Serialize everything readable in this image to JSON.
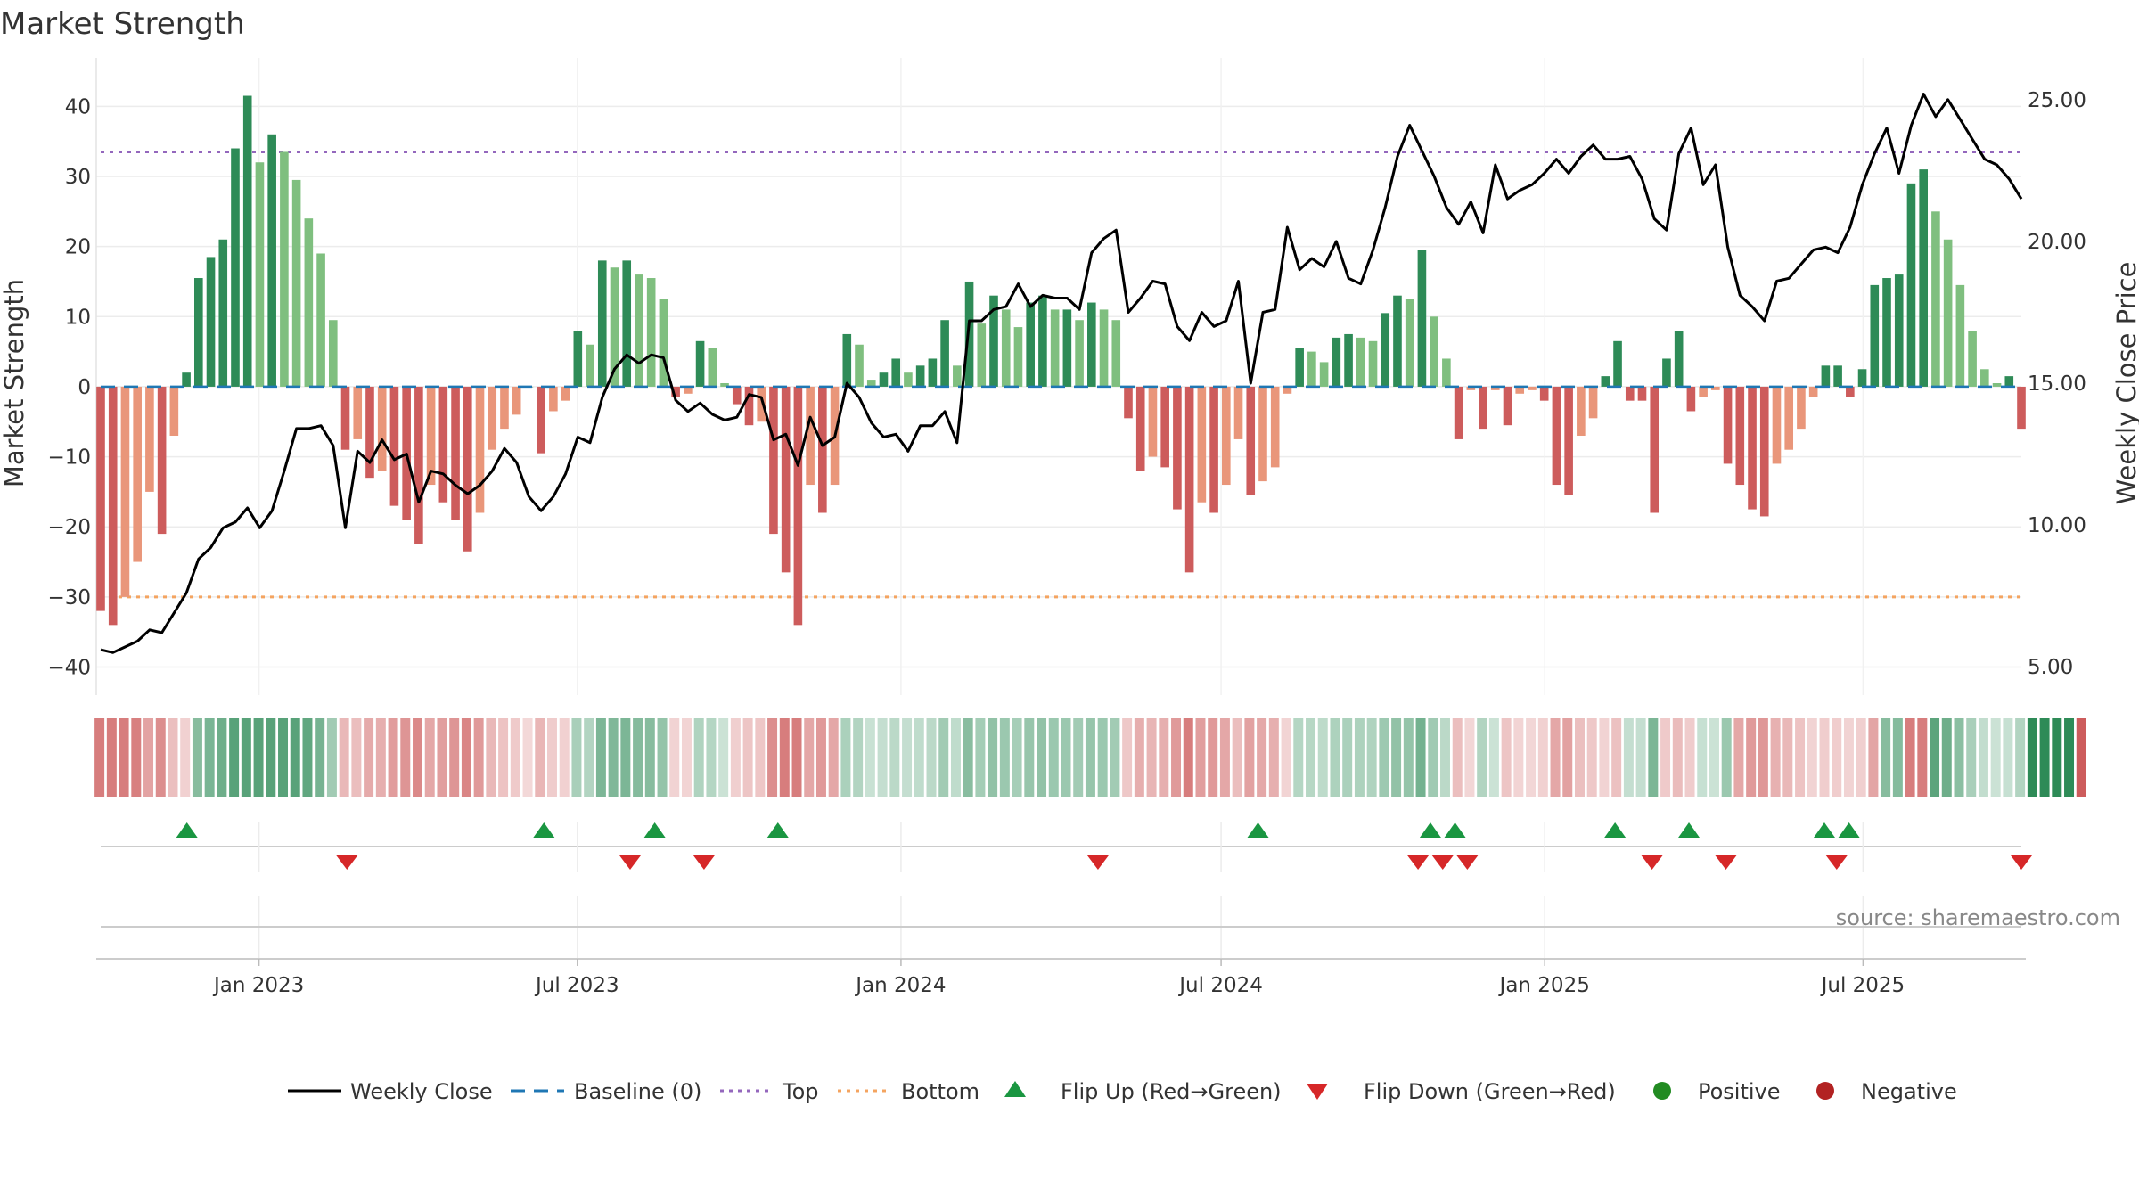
{
  "chart_data": {
    "type": "bar",
    "title": "Market Strength",
    "ylabel_left": "Market Strength",
    "ylabel_right": "Weekly Close Price",
    "ylim_left": [
      -44,
      45
    ],
    "ylim_right": [
      4,
      26
    ],
    "yticks_left": [
      40,
      30,
      20,
      10,
      0,
      -10,
      -20,
      -30,
      -40
    ],
    "ytick_labels_left": [
      "40",
      "30",
      "20",
      "10",
      "0",
      "−10",
      "−20",
      "−30",
      "−40"
    ],
    "yticks_right": [
      25,
      20,
      15,
      10,
      5
    ],
    "ytick_labels_right": [
      "25.00",
      "20.00",
      "15.00",
      "10.00",
      "5.00"
    ],
    "x_start": "2022-10-03",
    "x_end": "2025-09-29",
    "xticks": [
      {
        "date": "2023-01-01",
        "label": "Jan 2023"
      },
      {
        "date": "2023-07-01",
        "label": "Jul 2023"
      },
      {
        "date": "2024-01-01",
        "label": "Jan 2024"
      },
      {
        "date": "2024-07-01",
        "label": "Jul 2024"
      },
      {
        "date": "2025-01-01",
        "label": "Jan 2025"
      },
      {
        "date": "2025-07-01",
        "label": "Jul 2025"
      }
    ],
    "top_line": 33.5,
    "bottom_line": -30,
    "baseline": 0,
    "strength": [
      -32,
      -34,
      -30,
      -25,
      -15,
      -21,
      -7,
      2,
      15.5,
      18.5,
      21,
      34,
      41.5,
      32,
      36,
      33.5,
      29.5,
      24,
      19,
      9.5,
      -9,
      -7.5,
      -13,
      -12,
      -17,
      -19,
      -22.5,
      -14,
      -16.5,
      -19,
      -23.5,
      -18,
      -9,
      -6,
      -4,
      0,
      -9.5,
      -3.5,
      -2,
      8,
      6,
      18,
      17,
      18,
      16,
      15.5,
      12.5,
      -1.5,
      -1,
      6.5,
      5.5,
      0.5,
      -2.5,
      -5.5,
      -5,
      -21,
      -26.5,
      -34,
      -14,
      -18,
      -14,
      7.5,
      6,
      1,
      2,
      4,
      2,
      3,
      4,
      9.5,
      3,
      15,
      9,
      13,
      11,
      8.5,
      12,
      13,
      11,
      11,
      9.5,
      12,
      11,
      9.5,
      -4.5,
      -12,
      -10,
      -11.5,
      -17.5,
      -26.5,
      -16.5,
      -18,
      -14,
      -7.5,
      -15.5,
      -13.5,
      -11.5,
      -1,
      5.5,
      5,
      3.5,
      7,
      7.5,
      7,
      6.5,
      10.5,
      13,
      12.5,
      19.5,
      10,
      4,
      -7.5,
      -0.5,
      -6,
      -0.5,
      -5.5,
      -1,
      -0.5,
      -2,
      -14,
      -15.5,
      -7,
      -4.5,
      1.5,
      6.5,
      -2,
      -2,
      -18,
      4,
      8,
      -3.5,
      -1.5,
      -0.5,
      -11,
      -14,
      -17.5,
      -18.5,
      -11,
      -9,
      -6,
      -1.5,
      3,
      3,
      -1.5,
      2.5,
      14.5,
      15.5,
      16,
      29,
      31,
      25,
      21,
      14.5,
      8,
      2.5,
      0.5,
      1.5,
      -6
    ],
    "weekly_close": [
      5.6,
      5.5,
      5.7,
      5.9,
      6.3,
      6.2,
      6.9,
      7.6,
      8.8,
      9.2,
      9.9,
      10.1,
      10.6,
      9.9,
      10.5,
      11.9,
      13.4,
      13.4,
      13.5,
      12.8,
      9.9,
      12.6,
      12.2,
      13.0,
      12.3,
      12.5,
      10.8,
      11.9,
      11.8,
      11.4,
      11.1,
      11.4,
      11.9,
      12.7,
      12.2,
      11.0,
      10.5,
      11.0,
      11.8,
      13.1,
      12.9,
      14.5,
      15.5,
      16.0,
      15.7,
      16.0,
      15.9,
      14.4,
      14.0,
      14.3,
      13.9,
      13.7,
      13.8,
      14.6,
      14.5,
      13.0,
      13.2,
      12.1,
      13.8,
      12.8,
      13.1,
      15.0,
      14.5,
      13.6,
      13.1,
      13.2,
      12.6,
      13.5,
      13.5,
      14.0,
      12.9,
      17.2,
      17.2,
      17.6,
      17.7,
      18.5,
      17.7,
      18.1,
      18.0,
      18.0,
      17.6,
      19.6,
      20.1,
      20.4,
      17.5,
      18.0,
      18.6,
      18.5,
      17.0,
      16.5,
      17.5,
      17.0,
      17.2,
      18.6,
      15.0,
      17.5,
      17.6,
      20.5,
      19.0,
      19.4,
      19.1,
      20.0,
      18.7,
      18.5,
      19.7,
      21.2,
      23.0,
      24.1,
      23.2,
      22.3,
      21.2,
      20.6,
      21.4,
      20.3,
      22.7,
      21.5,
      21.8,
      22.0,
      22.4,
      22.9,
      22.4,
      23.0,
      23.4,
      22.9,
      22.9,
      23.0,
      22.2,
      20.8,
      20.4,
      23.1,
      24.0,
      22.0,
      22.7,
      19.8,
      18.1,
      17.7,
      17.2,
      18.6,
      18.7,
      19.2,
      19.7,
      19.8,
      19.6,
      20.5,
      22.0,
      23.1,
      24.0,
      22.4,
      24.1,
      25.2,
      24.4,
      25.0,
      24.3,
      23.6,
      22.9,
      22.7,
      22.2,
      21.5
    ],
    "regime": [
      -1,
      -1,
      -1,
      -1,
      -1,
      -1,
      -1,
      -1,
      1,
      1,
      1,
      1,
      1,
      1,
      1,
      1,
      1,
      1,
      1,
      1,
      -1,
      -1,
      -1,
      -1,
      -1,
      -1,
      -1,
      -1,
      -1,
      -1,
      -1,
      -1,
      -1,
      -1,
      -1,
      -1,
      -1,
      -1,
      -1,
      1,
      1,
      1,
      1,
      1,
      1,
      1,
      1,
      -1,
      -1,
      1,
      1,
      1,
      -1,
      -1,
      -1,
      -1,
      -1,
      -1,
      -1,
      -1,
      -1,
      1,
      1,
      1,
      1,
      1,
      1,
      1,
      1,
      1,
      1,
      1,
      1,
      1,
      1,
      1,
      1,
      1,
      1,
      1,
      1,
      1,
      1,
      1,
      -1,
      -1,
      -1,
      -1,
      -1,
      -1,
      -1,
      -1,
      -1,
      -1,
      -1,
      -1,
      -1,
      -1,
      1,
      1,
      1,
      1,
      1,
      1,
      1,
      1,
      1,
      1,
      1,
      1,
      1,
      -1,
      -1,
      1,
      1,
      -1,
      -1,
      -1,
      -1,
      -1,
      -1,
      -1,
      -1,
      -1,
      -1,
      1,
      1,
      1,
      -1,
      -1,
      -1,
      1,
      1,
      1,
      -1,
      -1,
      -1,
      -1,
      -1,
      -1,
      -1,
      -1,
      -1,
      -1,
      -1,
      -1,
      1,
      1,
      -1,
      -1,
      1,
      1,
      1,
      1,
      1,
      1,
      1,
      1,
      1,
      1,
      1,
      1,
      -1
    ],
    "flip_up_dates": [
      "2022-11-21",
      "2023-06-12",
      "2023-08-14",
      "2023-10-23",
      "2024-07-22",
      "2024-10-28",
      "2024-11-11",
      "2025-02-10",
      "2025-03-24",
      "2025-06-09",
      "2025-06-23"
    ],
    "flip_down_dates": [
      "2023-02-20",
      "2023-07-31",
      "2023-09-11",
      "2024-04-22",
      "2024-10-21",
      "2024-11-04",
      "2024-11-18",
      "2025-03-03",
      "2025-04-14",
      "2025-06-16",
      "2025-09-29"
    ],
    "legend": {
      "weekly_close": "Weekly Close",
      "baseline": "Baseline (0)",
      "top": "Top",
      "bottom": "Bottom",
      "flip_up": "Flip Up (Red→Green)",
      "flip_down": "Flip Down (Green→Red)",
      "positive": "Positive",
      "negative": "Negative"
    },
    "source": "source: sharemaestro.com",
    "colors": {
      "pos_strong": "#2e8b57",
      "pos_weak": "#7fbf7f",
      "neg_strong": "#cd5c5c",
      "neg_weak": "#e9967a",
      "line": "#000000",
      "baseline": "#1f77b4",
      "top": "#9467bd",
      "bottom": "#f4a460",
      "flip_up": "#1a9641",
      "flip_down": "#d62728",
      "positive": "#228b22",
      "negative": "#b22222"
    }
  }
}
